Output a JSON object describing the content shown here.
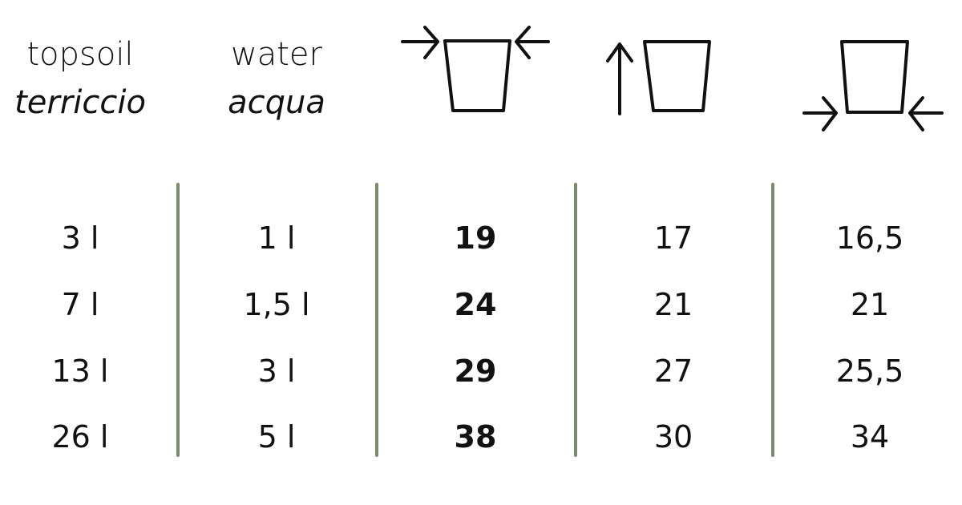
{
  "headers": [
    {
      "en": "topsoil",
      "it": "terriccio"
    },
    {
      "en": "water",
      "it": "acqua"
    },
    {
      "icon": "pot-top-diameter-icon"
    },
    {
      "icon": "pot-height-icon"
    },
    {
      "icon": "pot-bottom-diameter-icon"
    }
  ],
  "rows": [
    [
      "3 l",
      "1 l",
      "19",
      "17",
      "16,5"
    ],
    [
      "7 l",
      "1,5 l",
      "24",
      "21",
      "21"
    ],
    [
      "13 l",
      "3 l",
      "29",
      "27",
      "25,5"
    ],
    [
      "26 l",
      "5 l",
      "38",
      "30",
      "34"
    ]
  ],
  "colors": {
    "divider": "#7b8a6c",
    "text": "#111111"
  }
}
